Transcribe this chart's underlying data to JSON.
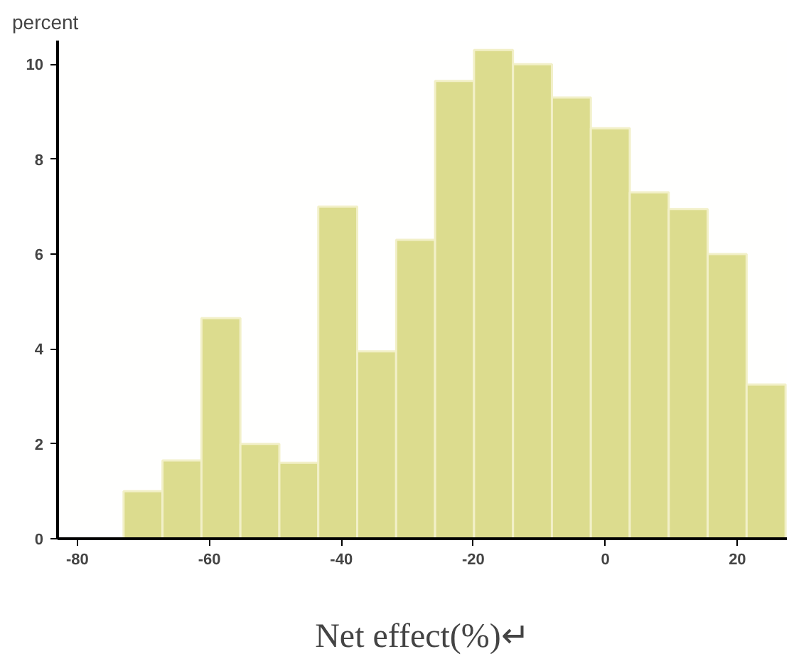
{
  "chart_data": {
    "type": "histogram",
    "ylabel": "percent",
    "xlabel": "Net effect(%)↵",
    "bins": [
      -73,
      -67.1,
      -61.2,
      -55.3,
      -49.4,
      -43.5,
      -37.6,
      -31.7,
      -25.8,
      -19.9,
      -14,
      -8.1,
      -2.2,
      3.7,
      9.6,
      15.5,
      21.4,
      27.3
    ],
    "values": [
      1.0,
      1.65,
      4.65,
      2.0,
      1.6,
      7.0,
      3.95,
      6.3,
      9.65,
      10.3,
      10.0,
      9.3,
      8.65,
      7.3,
      6.95,
      6.0,
      3.25
    ],
    "color": "#dcdc8e",
    "xlim": [
      -83,
      27.5
    ],
    "ylim": [
      0,
      10.5
    ],
    "xticks": [
      {
        "value": -80,
        "label": "-80"
      },
      {
        "value": -60,
        "label": "-60"
      },
      {
        "value": -40,
        "label": "-40"
      },
      {
        "value": -20,
        "label": "-20"
      },
      0,
      20
    ],
    "yticks": [
      0,
      2,
      4,
      6,
      8,
      10
    ],
    "grid": false
  }
}
